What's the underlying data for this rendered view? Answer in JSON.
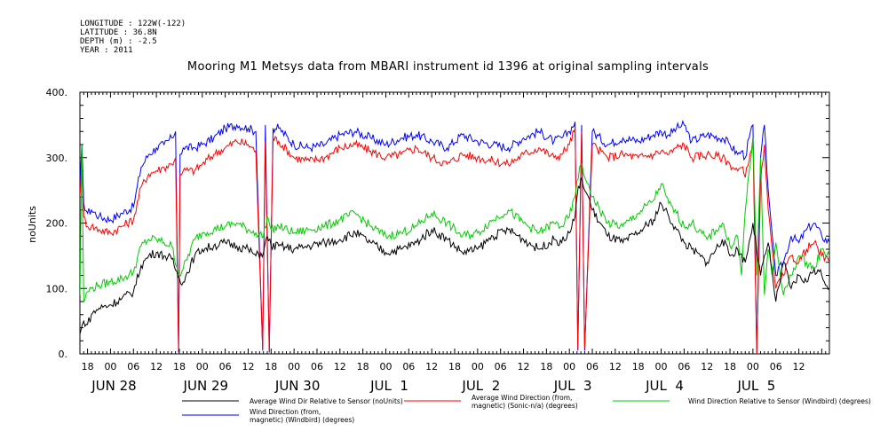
{
  "meta": {
    "longitude": "LONGITUDE : 122W(-122)",
    "latitude": "LATITUDE : 36.8N",
    "depth": "DEPTH (m) : -2.5",
    "year": "YEAR : 2011"
  },
  "chart_data": {
    "type": "line",
    "title": "Mooring M1 Metsys data from MBARI instrument id 1396 at original sampling intervals",
    "ylabel": "noUnits",
    "xlabel": "",
    "ylim": [
      0,
      400
    ],
    "yticks": [
      0,
      100,
      200,
      300,
      400
    ],
    "xlim_hours": [
      -8,
      188
    ],
    "hour_ticks": [
      {
        "h": -6,
        "label": "18"
      },
      {
        "h": 0,
        "label": "00"
      },
      {
        "h": 6,
        "label": "06"
      },
      {
        "h": 12,
        "label": "12"
      },
      {
        "h": 18,
        "label": "18"
      },
      {
        "h": 24,
        "label": "00"
      },
      {
        "h": 30,
        "label": "06"
      },
      {
        "h": 36,
        "label": "12"
      },
      {
        "h": 42,
        "label": "18"
      },
      {
        "h": 48,
        "label": "00"
      },
      {
        "h": 54,
        "label": "06"
      },
      {
        "h": 60,
        "label": "12"
      },
      {
        "h": 66,
        "label": "18"
      },
      {
        "h": 72,
        "label": "00"
      },
      {
        "h": 78,
        "label": "06"
      },
      {
        "h": 84,
        "label": "12"
      },
      {
        "h": 90,
        "label": "18"
      },
      {
        "h": 96,
        "label": "00"
      },
      {
        "h": 102,
        "label": "06"
      },
      {
        "h": 108,
        "label": "12"
      },
      {
        "h": 114,
        "label": "18"
      },
      {
        "h": 120,
        "label": "00"
      },
      {
        "h": 126,
        "label": "06"
      },
      {
        "h": 132,
        "label": "12"
      },
      {
        "h": 138,
        "label": "18"
      },
      {
        "h": 144,
        "label": "00"
      },
      {
        "h": 150,
        "label": "06"
      },
      {
        "h": 156,
        "label": "12"
      },
      {
        "h": 162,
        "label": "18"
      },
      {
        "h": 168,
        "label": "00"
      },
      {
        "h": 174,
        "label": "06"
      },
      {
        "h": 180,
        "label": "12"
      }
    ],
    "date_labels": [
      {
        "h": 0,
        "label": "JUN 28"
      },
      {
        "h": 24,
        "label": "JUN 29"
      },
      {
        "h": 48,
        "label": "JUN 30"
      },
      {
        "h": 72,
        "label": "JUL  1"
      },
      {
        "h": 96,
        "label": "JUL  2"
      },
      {
        "h": 120,
        "label": "JUL  3"
      },
      {
        "h": 144,
        "label": "JUL  4"
      },
      {
        "h": 168,
        "label": "JUL  5"
      }
    ],
    "x_unit_note": "x values are hours relative to JUN 28 2011 00:00",
    "series": [
      {
        "name": "Wind Direction (from, magnetic) (Windbird) (degrees)",
        "color": "#0000ff",
        "x": [
          -8,
          -7.5,
          -7,
          -6,
          -5,
          -3,
          0,
          3,
          6,
          8,
          10,
          12,
          14,
          16,
          17,
          17.8,
          18.2,
          19,
          22,
          24,
          27,
          30,
          33,
          36,
          38,
          39.8,
          40.5,
          41.5,
          42.5,
          44,
          48,
          52,
          56,
          60,
          64,
          68,
          72,
          76,
          80,
          84,
          88,
          92,
          96,
          100,
          104,
          108,
          112,
          116,
          118,
          120,
          121.5,
          122.2,
          123.2,
          124,
          126,
          130,
          134,
          138,
          142,
          144,
          146,
          148,
          150,
          152,
          156,
          160,
          162,
          164,
          165,
          166,
          167,
          168,
          169,
          170,
          171,
          172,
          174,
          176,
          178,
          180,
          182,
          184,
          186,
          188
        ],
        "y": [
          250,
          320,
          230,
          215,
          220,
          210,
          205,
          215,
          225,
          285,
          305,
          315,
          320,
          330,
          340,
          2,
          305,
          315,
          315,
          320,
          330,
          345,
          350,
          345,
          340,
          5,
          350,
          2,
          345,
          345,
          320,
          315,
          320,
          335,
          340,
          330,
          320,
          330,
          335,
          325,
          315,
          335,
          325,
          320,
          315,
          330,
          340,
          325,
          330,
          340,
          355,
          5,
          350,
          5,
          340,
          320,
          330,
          325,
          335,
          340,
          335,
          345,
          350,
          325,
          335,
          330,
          320,
          305,
          310,
          300,
          330,
          350,
          3,
          300,
          350,
          250,
          120,
          140,
          180,
          170,
          190,
          200,
          180,
          170
        ]
      },
      {
        "name": "Average Wind Direction (from, magnetic) (Sonic-n/a) (degrees)",
        "color": "#ff0000",
        "x": [
          -8,
          -7.5,
          -7,
          -6,
          -5,
          -3,
          0,
          3,
          6,
          8,
          10,
          12,
          14,
          16,
          17,
          17.8,
          18.2,
          19,
          22,
          24,
          27,
          30,
          33,
          36,
          38,
          39.8,
          40.5,
          41.5,
          42.5,
          44,
          48,
          52,
          56,
          60,
          64,
          68,
          72,
          76,
          80,
          84,
          88,
          92,
          96,
          100,
          104,
          108,
          112,
          116,
          118,
          120,
          121.5,
          122.2,
          123.2,
          124,
          126,
          130,
          134,
          138,
          142,
          144,
          146,
          148,
          150,
          152,
          156,
          160,
          162,
          164,
          165,
          166,
          167,
          168,
          169,
          170,
          171,
          172,
          174,
          176,
          178,
          180,
          182,
          184,
          186,
          188
        ],
        "y": [
          240,
          300,
          210,
          195,
          195,
          190,
          185,
          195,
          205,
          255,
          275,
          280,
          285,
          290,
          300,
          5,
          275,
          280,
          280,
          290,
          305,
          315,
          325,
          320,
          310,
          8,
          325,
          5,
          330,
          325,
          300,
          295,
          300,
          315,
          320,
          310,
          300,
          305,
          315,
          300,
          290,
          305,
          300,
          295,
          290,
          305,
          315,
          300,
          305,
          320,
          345,
          8,
          340,
          8,
          320,
          300,
          305,
          300,
          305,
          310,
          305,
          315,
          320,
          300,
          305,
          300,
          290,
          280,
          285,
          270,
          295,
          330,
          0,
          260,
          320,
          220,
          100,
          120,
          150,
          140,
          160,
          170,
          150,
          140
        ]
      },
      {
        "name": "Wind Direction Relative to Sensor (Windbird) (degrees)",
        "color": "#00cc00",
        "x": [
          -8,
          -7.5,
          -7,
          -6,
          -5,
          -3,
          0,
          3,
          6,
          8,
          10,
          12,
          14,
          16,
          18,
          19,
          22,
          24,
          27,
          30,
          33,
          36,
          38,
          40,
          41,
          42,
          44,
          48,
          52,
          56,
          60,
          64,
          68,
          72,
          76,
          80,
          84,
          88,
          92,
          96,
          100,
          104,
          108,
          112,
          116,
          118,
          120,
          121.5,
          122,
          123,
          124,
          125,
          126,
          130,
          134,
          138,
          142,
          144,
          146,
          148,
          150,
          152,
          156,
          160,
          162,
          164,
          165,
          166,
          168,
          169,
          170,
          171,
          172,
          173,
          174,
          176,
          178,
          180,
          182,
          184,
          186,
          188
        ],
        "y": [
          90,
          320,
          80,
          95,
          100,
          105,
          110,
          115,
          125,
          165,
          175,
          175,
          170,
          165,
          120,
          130,
          175,
          185,
          190,
          195,
          200,
          190,
          185,
          180,
          210,
          190,
          195,
          185,
          190,
          195,
          205,
          215,
          195,
          180,
          185,
          195,
          215,
          200,
          180,
          185,
          205,
          220,
          200,
          185,
          200,
          195,
          210,
          240,
          265,
          290,
          270,
          260,
          240,
          200,
          195,
          215,
          235,
          260,
          230,
          215,
          195,
          200,
          175,
          200,
          165,
          180,
          120,
          220,
          330,
          120,
          300,
          90,
          160,
          120,
          170,
          90,
          120,
          150,
          140,
          130,
          160,
          150
        ]
      },
      {
        "name": "Average Wind Dir Relative to Sensor (noUnits)",
        "color": "#000000",
        "x": [
          -8,
          -7,
          -6,
          -5,
          -3,
          0,
          3,
          6,
          8,
          10,
          12,
          14,
          16,
          18,
          19,
          22,
          24,
          27,
          30,
          33,
          36,
          38,
          40,
          41,
          42,
          44,
          48,
          52,
          56,
          60,
          64,
          68,
          72,
          76,
          80,
          84,
          88,
          92,
          96,
          100,
          104,
          108,
          112,
          116,
          118,
          120,
          121.5,
          122,
          123,
          124,
          125,
          126,
          130,
          134,
          138,
          142,
          144,
          146,
          148,
          150,
          152,
          156,
          160,
          162,
          164,
          166,
          168,
          170,
          172,
          174,
          176,
          178,
          180,
          182,
          184,
          186,
          188
        ],
        "y": [
          30,
          50,
          45,
          60,
          70,
          75,
          85,
          95,
          135,
          150,
          155,
          150,
          145,
          115,
          110,
          150,
          160,
          165,
          170,
          165,
          160,
          150,
          155,
          180,
          165,
          165,
          160,
          165,
          170,
          175,
          185,
          170,
          155,
          160,
          170,
          190,
          175,
          155,
          160,
          180,
          190,
          175,
          160,
          175,
          170,
          185,
          210,
          240,
          270,
          250,
          240,
          220,
          180,
          170,
          185,
          205,
          230,
          210,
          190,
          170,
          160,
          140,
          175,
          150,
          160,
          140,
          200,
          120,
          170,
          80,
          140,
          100,
          120,
          110,
          130,
          120,
          100
        ]
      }
    ]
  },
  "legend": [
    {
      "text": "Average Wind Dir Relative to Sensor (noUnits)",
      "color": "#000000"
    },
    {
      "text": "Average Wind Direction (from,",
      "text2": "magnetic) (Sonic-n/a) (degrees)",
      "color": "#ff0000"
    },
    {
      "text": "Wind Direction Relative to Sensor (Windbird) (degrees)",
      "color": "#00cc00"
    },
    {
      "text": "Wind Direction (from,",
      "text2": "magnetic) (Windbird) (degrees)",
      "color": "#0000ff"
    }
  ]
}
